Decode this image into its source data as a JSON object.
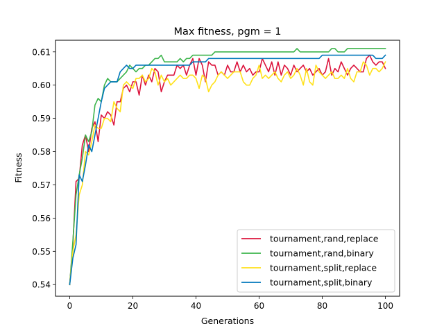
{
  "chart_data": {
    "type": "line",
    "title": "Max fitness, pgm = 1",
    "xlabel": "Generations",
    "ylabel": "Fitness",
    "xlim": [
      -4.5,
      104.5
    ],
    "ylim": [
      0.5365,
      0.6135
    ],
    "xticks": [
      0,
      20,
      40,
      60,
      80,
      100
    ],
    "yticks": [
      0.54,
      0.55,
      0.56,
      0.57,
      0.58,
      0.59,
      0.6,
      0.61
    ],
    "ytick_labels": [
      "0.54",
      "0.55",
      "0.56",
      "0.57",
      "0.58",
      "0.59",
      "0.60",
      "0.61"
    ],
    "legend_position": "lower right",
    "grid": false,
    "series": [
      {
        "name": "tournament,rand,replace",
        "color": "#dc143c",
        "x_start": 0,
        "values": [
          0.54,
          0.552,
          0.571,
          0.572,
          0.582,
          0.585,
          0.58,
          0.587,
          0.589,
          0.583,
          0.591,
          0.59,
          0.592,
          0.591,
          0.588,
          0.595,
          0.595,
          0.599,
          0.6,
          0.598,
          0.601,
          0.601,
          0.597,
          0.603,
          0.6,
          0.603,
          0.601,
          0.605,
          0.604,
          0.598,
          0.601,
          0.603,
          0.603,
          0.603,
          0.606,
          0.605,
          0.606,
          0.603,
          0.606,
          0.608,
          0.603,
          0.608,
          0.606,
          0.601,
          0.607,
          0.606,
          0.606,
          0.603,
          0.604,
          0.603,
          0.606,
          0.604,
          0.604,
          0.607,
          0.604,
          0.606,
          0.604,
          0.605,
          0.603,
          0.604,
          0.604,
          0.608,
          0.606,
          0.604,
          0.607,
          0.603,
          0.607,
          0.603,
          0.606,
          0.605,
          0.603,
          0.606,
          0.604,
          0.605,
          0.606,
          0.604,
          0.605,
          0.603,
          0.604,
          0.605,
          0.603,
          0.604,
          0.608,
          0.603,
          0.605,
          0.604,
          0.607,
          0.605,
          0.603,
          0.605,
          0.606,
          0.605,
          0.604,
          0.604,
          0.608,
          0.609,
          0.607,
          0.606,
          0.607,
          0.607,
          0.605
        ]
      },
      {
        "name": "tournament,rand,binary",
        "color": "#3cb44b",
        "x_start": 0,
        "values": [
          0.54,
          0.553,
          0.567,
          0.573,
          0.578,
          0.585,
          0.583,
          0.586,
          0.594,
          0.596,
          0.595,
          0.6,
          0.602,
          0.601,
          0.601,
          0.601,
          0.602,
          0.603,
          0.604,
          0.606,
          0.605,
          0.604,
          0.605,
          0.605,
          0.606,
          0.606,
          0.607,
          0.608,
          0.608,
          0.609,
          0.607,
          0.607,
          0.607,
          0.607,
          0.607,
          0.608,
          0.607,
          0.608,
          0.608,
          0.609,
          0.609,
          0.609,
          0.609,
          0.609,
          0.609,
          0.609,
          0.61,
          0.61,
          0.61,
          0.61,
          0.61,
          0.61,
          0.61,
          0.61,
          0.61,
          0.61,
          0.61,
          0.61,
          0.61,
          0.61,
          0.61,
          0.61,
          0.61,
          0.61,
          0.61,
          0.61,
          0.61,
          0.61,
          0.61,
          0.61,
          0.61,
          0.61,
          0.611,
          0.61,
          0.61,
          0.61,
          0.61,
          0.61,
          0.61,
          0.61,
          0.61,
          0.61,
          0.61,
          0.611,
          0.611,
          0.61,
          0.61,
          0.61,
          0.611,
          0.611,
          0.611,
          0.611,
          0.611,
          0.611,
          0.611,
          0.611,
          0.611,
          0.611,
          0.611,
          0.611,
          0.611
        ]
      },
      {
        "name": "tournament,split,replace",
        "color": "#ffe119",
        "x_start": 0,
        "values": [
          0.54,
          0.55,
          0.555,
          0.567,
          0.57,
          0.58,
          0.579,
          0.583,
          0.588,
          0.587,
          0.587,
          0.59,
          0.59,
          0.589,
          0.595,
          0.593,
          0.592,
          0.6,
          0.601,
          0.6,
          0.599,
          0.602,
          0.602,
          0.603,
          0.601,
          0.602,
          0.605,
          0.604,
          0.6,
          0.603,
          0.601,
          0.602,
          0.6,
          0.601,
          0.602,
          0.603,
          0.602,
          0.602,
          0.603,
          0.603,
          0.602,
          0.599,
          0.603,
          0.602,
          0.598,
          0.6,
          0.601,
          0.603,
          0.604,
          0.603,
          0.602,
          0.603,
          0.604,
          0.604,
          0.604,
          0.601,
          0.6,
          0.6,
          0.602,
          0.603,
          0.606,
          0.602,
          0.603,
          0.602,
          0.603,
          0.604,
          0.602,
          0.601,
          0.603,
          0.604,
          0.602,
          0.603,
          0.605,
          0.603,
          0.6,
          0.605,
          0.601,
          0.6,
          0.606,
          0.604,
          0.603,
          0.602,
          0.603,
          0.604,
          0.602,
          0.602,
          0.603,
          0.602,
          0.605,
          0.602,
          0.601,
          0.604,
          0.604,
          0.607,
          0.606,
          0.603,
          0.605,
          0.605,
          0.604,
          0.605,
          0.607
        ]
      },
      {
        "name": "tournament,split,binary",
        "color": "#0077bb",
        "x_start": 0,
        "values": [
          0.54,
          0.548,
          0.552,
          0.573,
          0.571,
          0.576,
          0.582,
          0.58,
          0.585,
          0.59,
          0.595,
          0.599,
          0.6,
          0.601,
          0.601,
          0.601,
          0.604,
          0.605,
          0.606,
          0.605,
          0.605,
          0.606,
          0.606,
          0.606,
          0.606,
          0.606,
          0.606,
          0.606,
          0.606,
          0.606,
          0.606,
          0.606,
          0.606,
          0.606,
          0.606,
          0.606,
          0.606,
          0.606,
          0.606,
          0.607,
          0.607,
          0.607,
          0.607,
          0.607,
          0.608,
          0.608,
          0.608,
          0.608,
          0.608,
          0.608,
          0.608,
          0.608,
          0.608,
          0.608,
          0.608,
          0.608,
          0.608,
          0.608,
          0.608,
          0.608,
          0.608,
          0.608,
          0.608,
          0.608,
          0.608,
          0.608,
          0.608,
          0.608,
          0.608,
          0.608,
          0.608,
          0.608,
          0.608,
          0.608,
          0.608,
          0.608,
          0.608,
          0.608,
          0.608,
          0.608,
          0.609,
          0.609,
          0.609,
          0.609,
          0.609,
          0.609,
          0.609,
          0.609,
          0.609,
          0.609,
          0.609,
          0.609,
          0.609,
          0.609,
          0.609,
          0.609,
          0.609,
          0.608,
          0.608,
          0.608,
          0.609
        ]
      }
    ]
  }
}
